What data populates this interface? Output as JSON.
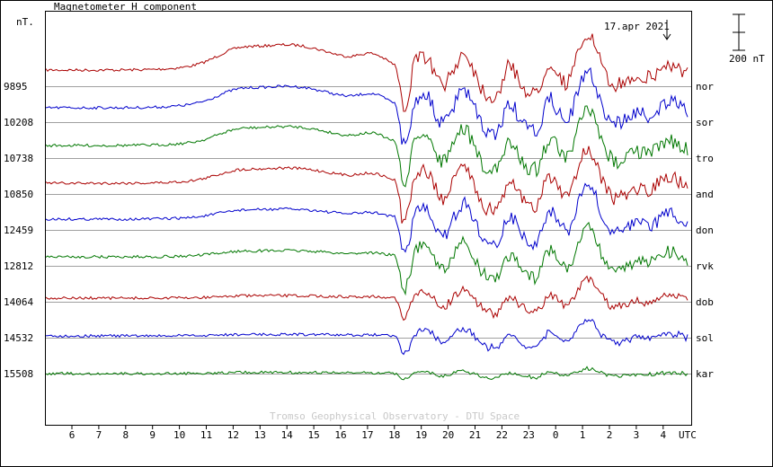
{
  "chart_data": {
    "type": "line",
    "title": "Magnetometer H component",
    "y_unit_label": "nT.",
    "date_label": "17.apr 2021",
    "scale_bar_label": "200 nT",
    "credit": "Tromso Geophysical Observatory - DTU Space",
    "x_unit": "UTC",
    "x_ticks": [
      "6",
      "7",
      "8",
      "9",
      "10",
      "11",
      "12",
      "13",
      "14",
      "15",
      "16",
      "17",
      "18",
      "19",
      "20",
      "21",
      "22",
      "23",
      "0",
      "1",
      "2",
      "3",
      "4"
    ],
    "stations": [
      {
        "name": "nor",
        "baseline": "9895",
        "color": "#aa0000"
      },
      {
        "name": "sor",
        "baseline": "10208",
        "color": "#0000cc"
      },
      {
        "name": "tro",
        "baseline": "10738",
        "color": "#007700"
      },
      {
        "name": "and",
        "baseline": "10850",
        "color": "#aa0000"
      },
      {
        "name": "don",
        "baseline": "12459",
        "color": "#0000cc"
      },
      {
        "name": "rvk",
        "baseline": "12812",
        "color": "#007700"
      },
      {
        "name": "dob",
        "baseline": "14064",
        "color": "#aa0000"
      },
      {
        "name": "sol",
        "baseline": "14532",
        "color": "#0000cc"
      },
      {
        "name": "kar",
        "baseline": "15508",
        "color": "#007700"
      }
    ]
  }
}
